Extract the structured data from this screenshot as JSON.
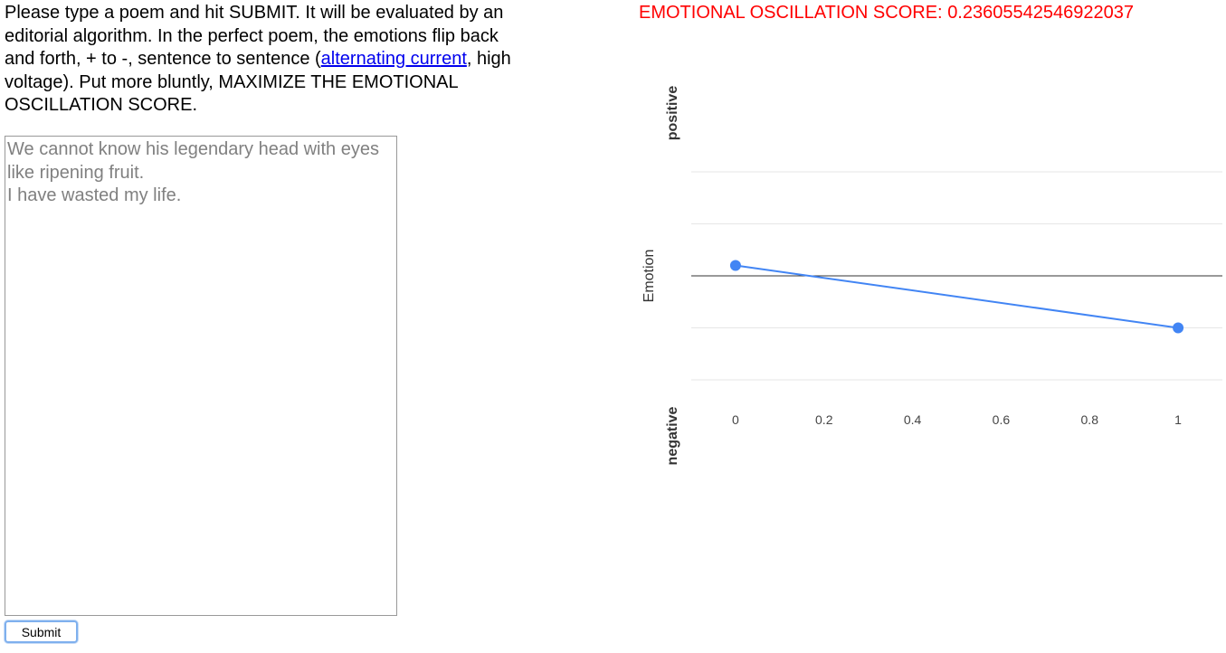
{
  "intro": {
    "text_before": "Please type a poem and hit SUBMIT. It will be evaluated by an editorial algorithm. In the perfect poem, the emotions flip back and forth, + to -, sentence to sentence (",
    "link_text": "alternating current",
    "text_after": ", high voltage). Put more bluntly, MAXIMIZE THE EMOTIONAL OSCILLATION SCORE."
  },
  "poem": {
    "placeholder": "We cannot know his legendary head with eyes like ripening fruit.\nI have wasted my life.",
    "value": ""
  },
  "submit_label": "Submit",
  "score": {
    "label": "EMOTIONAL OSCILLATION SCORE:",
    "value": "0.23605542546922037"
  },
  "colors": {
    "score": "#ff0000",
    "series": "#4285f4",
    "link": "#0000ee"
  },
  "chart_data": {
    "type": "line",
    "ylabel": "Emotion",
    "ylabel_top": "positive",
    "ylabel_bottom": "negative",
    "xlabel": "",
    "x": [
      0,
      1
    ],
    "y": [
      0.1,
      -0.5
    ],
    "xticks": [
      "0",
      "0.2",
      "0.4",
      "0.6",
      "0.8",
      "1"
    ],
    "xlim": [
      -0.1,
      1.1
    ],
    "ylim": [
      -1,
      1
    ],
    "grid": true,
    "legend": "none"
  }
}
